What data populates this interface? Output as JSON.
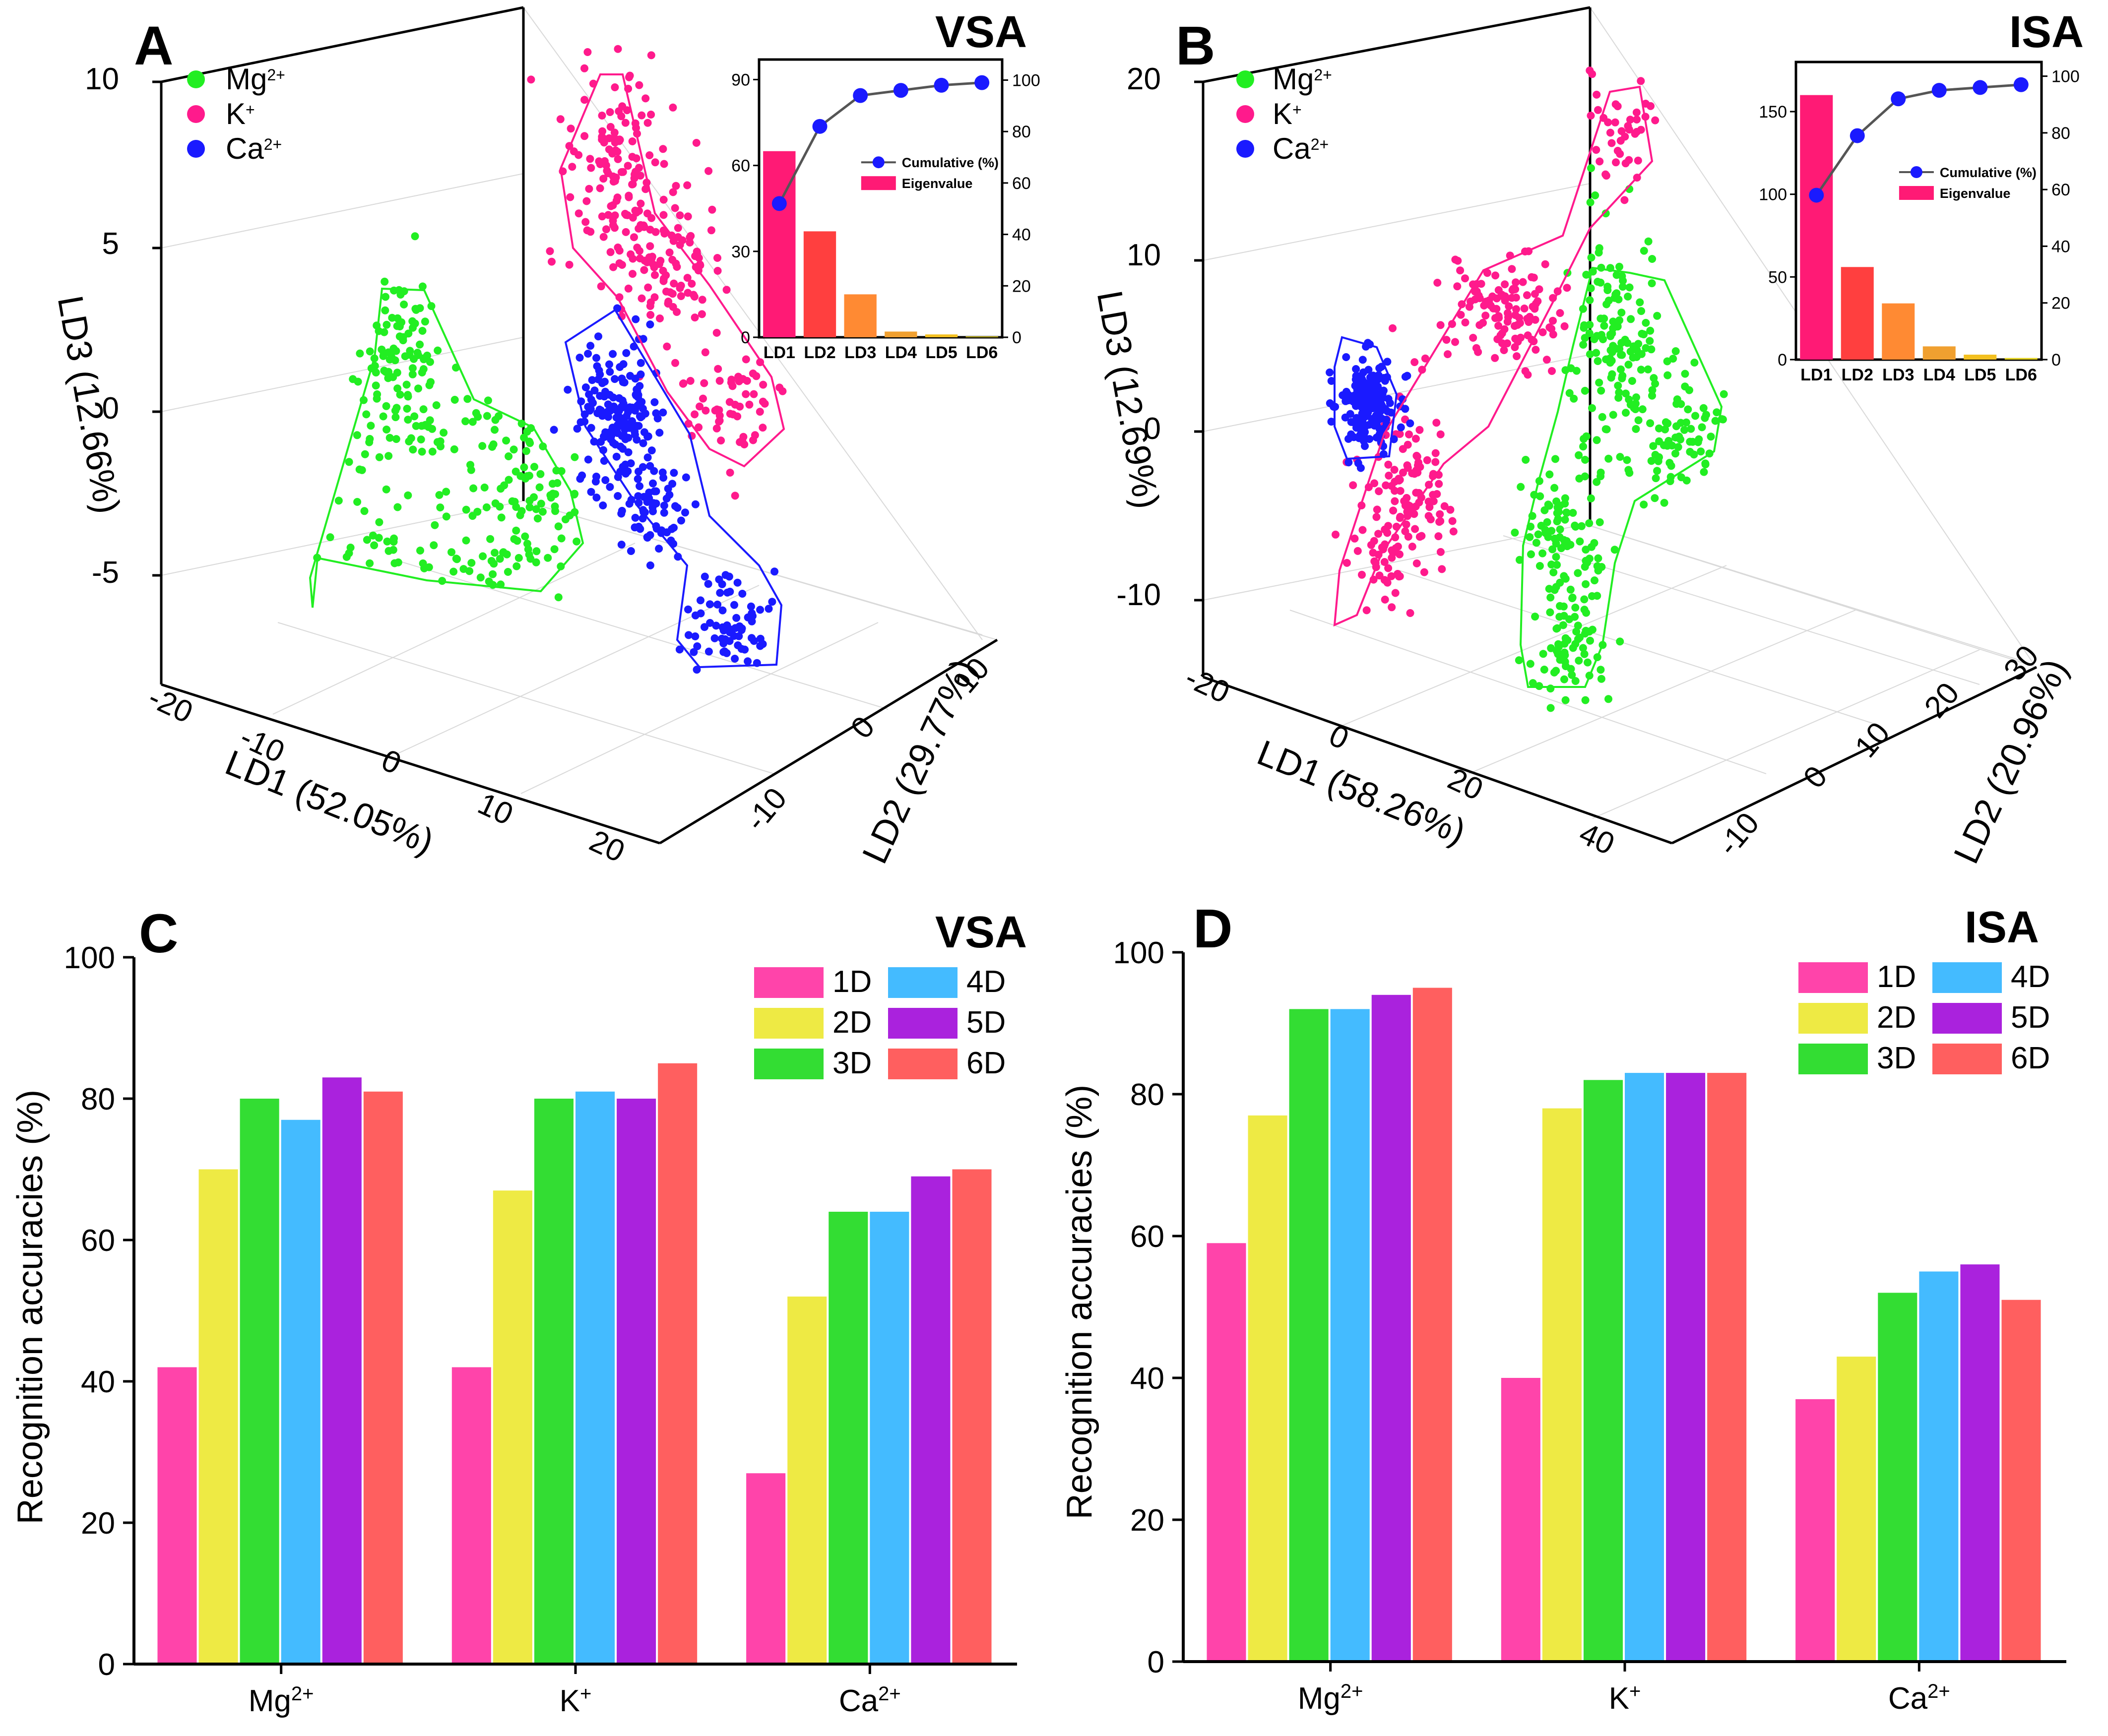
{
  "chart_data": [
    {
      "panel": "A",
      "tag": "VSA",
      "type": "scatter",
      "axes": {
        "x": {
          "label": "LD1 (52.05%)",
          "ticks": [
            "-20",
            "-10",
            "0",
            "10",
            "20"
          ]
        },
        "y": {
          "label": "LD2 (29.77%)",
          "ticks": [
            "-10",
            "0",
            "10"
          ]
        },
        "z": {
          "label": "LD3 (12.66%)",
          "ticks": [
            "10",
            "5",
            "0",
            "-5"
          ]
        }
      },
      "legend": [
        {
          "label": "Mg",
          "sup": "2+",
          "color": "#22ee22"
        },
        {
          "label": "K",
          "sup": "+",
          "color": "#ff1a8c"
        },
        {
          "label": "Ca",
          "sup": "2+",
          "color": "#1a1aff"
        }
      ],
      "inset": {
        "type": "bar",
        "categories": [
          "LD1",
          "LD2",
          "LD3",
          "LD4",
          "LD5",
          "LD6"
        ],
        "eigenvalues": [
          65,
          37,
          15,
          2,
          1,
          0.3
        ],
        "cumulative": [
          52,
          82,
          94,
          96,
          98,
          99
        ],
        "left_ticks": [
          "0",
          "30",
          "60",
          "90"
        ],
        "right_ticks": [
          "0",
          "20",
          "40",
          "60",
          "80",
          "100"
        ],
        "ylim_left": [
          0,
          97
        ],
        "ylim_right": [
          0,
          108
        ],
        "legend": [
          "Cumulative (%)",
          "Eigenvalue"
        ]
      }
    },
    {
      "panel": "B",
      "tag": "ISA",
      "type": "scatter",
      "axes": {
        "x": {
          "label": "LD1 (58.26%)",
          "ticks": [
            "-20",
            "0",
            "20",
            "40"
          ]
        },
        "y": {
          "label": "LD2 (20.96%)",
          "ticks": [
            "-10",
            "0",
            "10",
            "20",
            "30"
          ]
        },
        "z": {
          "label": "LD3 (12.69%)",
          "ticks": [
            "20",
            "10",
            "0",
            "-10"
          ]
        }
      },
      "legend": [
        {
          "label": "Mg",
          "sup": "2+",
          "color": "#22ee22"
        },
        {
          "label": "K",
          "sup": "+",
          "color": "#ff1a8c"
        },
        {
          "label": "Ca",
          "sup": "2+",
          "color": "#1a1aff"
        }
      ],
      "inset": {
        "type": "bar",
        "categories": [
          "LD1",
          "LD2",
          "LD3",
          "LD4",
          "LD5",
          "LD6"
        ],
        "eigenvalues": [
          160,
          56,
          34,
          8,
          3,
          1
        ],
        "cumulative": [
          58,
          79,
          92,
          95,
          96,
          97
        ],
        "left_ticks": [
          "0",
          "50",
          "100",
          "150"
        ],
        "right_ticks": [
          "0",
          "20",
          "40",
          "60",
          "80",
          "100"
        ],
        "ylim_left": [
          0,
          180
        ],
        "ylim_right": [
          0,
          105
        ],
        "legend": [
          "Cumulative (%)",
          "Eigenvalue"
        ]
      }
    },
    {
      "panel": "C",
      "tag": "VSA",
      "type": "bar",
      "categories": [
        {
          "label": "Mg",
          "sup": "2+"
        },
        {
          "label": "K",
          "sup": "+"
        },
        {
          "label": "Ca",
          "sup": "2+"
        }
      ],
      "series": [
        {
          "name": "1D",
          "values": [
            42,
            42,
            27
          ]
        },
        {
          "name": "2D",
          "values": [
            70,
            67,
            52
          ]
        },
        {
          "name": "3D",
          "values": [
            80,
            80,
            64
          ]
        },
        {
          "name": "4D",
          "values": [
            77,
            81,
            64
          ]
        },
        {
          "name": "5D",
          "values": [
            83,
            80,
            69
          ]
        },
        {
          "name": "6D",
          "values": [
            81,
            85,
            70
          ]
        }
      ],
      "ylabel": "Recognition accuracies (%)",
      "ylim": [
        0,
        100
      ],
      "yticks": [
        "0",
        "20",
        "40",
        "60",
        "80",
        "100"
      ]
    },
    {
      "panel": "D",
      "tag": "ISA",
      "type": "bar",
      "categories": [
        {
          "label": "Mg",
          "sup": "2+"
        },
        {
          "label": "K",
          "sup": "+"
        },
        {
          "label": "Ca",
          "sup": "2+"
        }
      ],
      "series": [
        {
          "name": "1D",
          "values": [
            59,
            40,
            37
          ]
        },
        {
          "name": "2D",
          "values": [
            77,
            78,
            43
          ]
        },
        {
          "name": "3D",
          "values": [
            92,
            82,
            52
          ]
        },
        {
          "name": "4D",
          "values": [
            92,
            83,
            55
          ]
        },
        {
          "name": "5D",
          "values": [
            94,
            83,
            56
          ]
        },
        {
          "name": "6D",
          "values": [
            95,
            83,
            51
          ]
        }
      ],
      "ylabel": "Recognition accuracies (%)",
      "ylim": [
        0,
        100
      ],
      "yticks": [
        "0",
        "20",
        "40",
        "60",
        "80",
        "100"
      ]
    }
  ],
  "colors": {
    "mg": "#22ee22",
    "k": "#ff1a8c",
    "ca": "#1a1aff",
    "series": [
      "#ff44aa",
      "#eeea44",
      "#33dd33",
      "#44bbff",
      "#aa22dd",
      "#ff5f5f"
    ],
    "inset_bars": [
      "#ff1a75",
      "#ff3f3f",
      "#ff8a33",
      "#f0a030",
      "#f3c020",
      "#e0d020"
    ],
    "cumulative_line": "#555555",
    "cumulative_marker": "#1a1aff"
  }
}
